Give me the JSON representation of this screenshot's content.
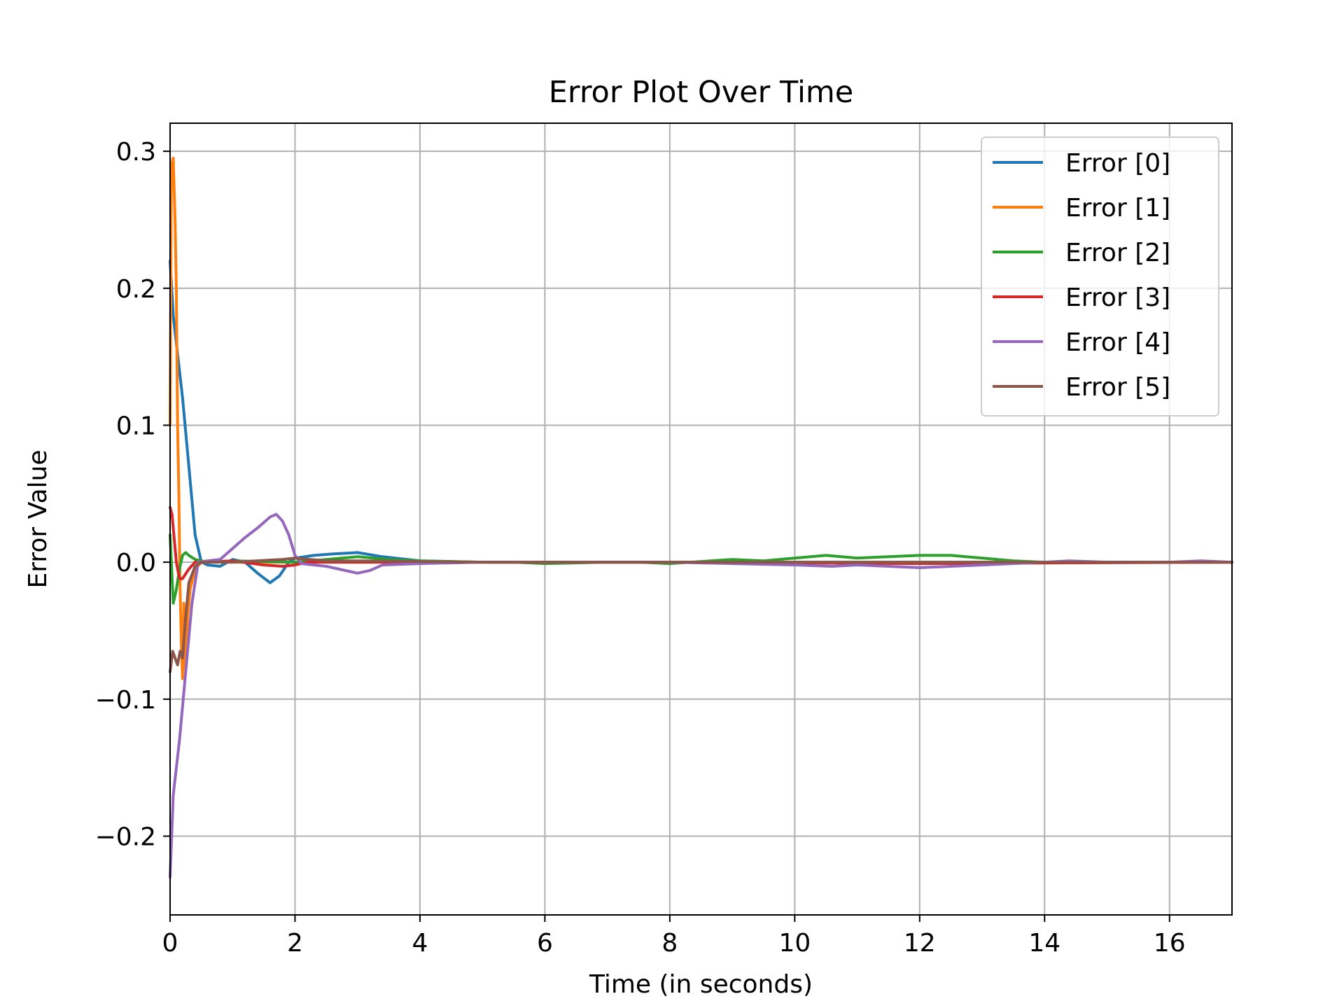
{
  "chart_data": {
    "type": "line",
    "title": "Error Plot Over Time",
    "xlabel": "Time (in seconds)",
    "ylabel": "Error Value",
    "xlim": [
      0,
      17
    ],
    "ylim": [
      -0.2575,
      0.3205
    ],
    "x_ticks": [
      0,
      2,
      4,
      6,
      8,
      10,
      12,
      14,
      16
    ],
    "x_tick_labels": [
      "0",
      "2",
      "4",
      "6",
      "8",
      "10",
      "12",
      "14",
      "16"
    ],
    "y_ticks": [
      -0.2,
      -0.1,
      0.0,
      0.1,
      0.2,
      0.3
    ],
    "y_tick_labels": [
      "−0.2",
      "−0.1",
      "0.0",
      "0.1",
      "0.2",
      "0.3"
    ],
    "grid": true,
    "legend_position": "top-right",
    "series": [
      {
        "name": "Error [0]",
        "color": "#1f77b4",
        "points": [
          [
            0,
            0.22
          ],
          [
            0.05,
            0.18
          ],
          [
            0.1,
            0.16
          ],
          [
            0.2,
            0.12
          ],
          [
            0.3,
            0.07
          ],
          [
            0.4,
            0.02
          ],
          [
            0.5,
            0.0
          ],
          [
            0.6,
            -0.002
          ],
          [
            0.8,
            -0.003
          ],
          [
            1.0,
            0.002
          ],
          [
            1.2,
            0.0
          ],
          [
            1.4,
            -0.008
          ],
          [
            1.6,
            -0.015
          ],
          [
            1.75,
            -0.01
          ],
          [
            1.9,
            0.0
          ],
          [
            2.0,
            0.003
          ],
          [
            2.3,
            0.005
          ],
          [
            2.6,
            0.006
          ],
          [
            3.0,
            0.007
          ],
          [
            3.4,
            0.004
          ],
          [
            4.0,
            0.001
          ],
          [
            5.0,
            0.0
          ],
          [
            8.0,
            0.0
          ],
          [
            12.0,
            0.0
          ],
          [
            17.0,
            0.0
          ]
        ]
      },
      {
        "name": "Error [1]",
        "color": "#ff7f0e",
        "points": [
          [
            0,
            0.1
          ],
          [
            0.02,
            0.29
          ],
          [
            0.05,
            0.295
          ],
          [
            0.08,
            0.25
          ],
          [
            0.1,
            0.2
          ],
          [
            0.12,
            0.1
          ],
          [
            0.14,
            0.05
          ],
          [
            0.16,
            -0.02
          ],
          [
            0.18,
            -0.06
          ],
          [
            0.2,
            -0.085
          ],
          [
            0.22,
            -0.03
          ],
          [
            0.25,
            -0.08
          ],
          [
            0.28,
            -0.04
          ],
          [
            0.32,
            -0.02
          ],
          [
            0.4,
            -0.005
          ],
          [
            0.5,
            0.0
          ],
          [
            1.0,
            0.0
          ],
          [
            3.0,
            0.0
          ],
          [
            8.0,
            0.0
          ],
          [
            17.0,
            0.0
          ]
        ]
      },
      {
        "name": "Error [2]",
        "color": "#2ca02c",
        "points": [
          [
            0,
            0.02
          ],
          [
            0.05,
            -0.03
          ],
          [
            0.1,
            -0.02
          ],
          [
            0.15,
            -0.005
          ],
          [
            0.2,
            0.005
          ],
          [
            0.25,
            0.007
          ],
          [
            0.3,
            0.005
          ],
          [
            0.4,
            0.002
          ],
          [
            0.6,
            0.0
          ],
          [
            1.0,
            0.001
          ],
          [
            2.0,
            0.0
          ],
          [
            2.5,
            0.002
          ],
          [
            3.0,
            0.004
          ],
          [
            3.5,
            0.002
          ],
          [
            4.0,
            0.001
          ],
          [
            5.0,
            0.0
          ],
          [
            5.5,
            0.0
          ],
          [
            6.0,
            -0.001
          ],
          [
            7.0,
            0.0
          ],
          [
            7.5,
            0.0
          ],
          [
            8.0,
            -0.001
          ],
          [
            9.0,
            0.002
          ],
          [
            9.5,
            0.001
          ],
          [
            10.0,
            0.003
          ],
          [
            10.5,
            0.005
          ],
          [
            11.0,
            0.003
          ],
          [
            11.5,
            0.004
          ],
          [
            12.0,
            0.005
          ],
          [
            12.5,
            0.005
          ],
          [
            13.0,
            0.003
          ],
          [
            13.5,
            0.001
          ],
          [
            14.0,
            0.0
          ],
          [
            17.0,
            0.0
          ]
        ]
      },
      {
        "name": "Error [3]",
        "color": "#d62728",
        "points": [
          [
            0,
            0.04
          ],
          [
            0.03,
            0.035
          ],
          [
            0.06,
            0.02
          ],
          [
            0.1,
            0.0
          ],
          [
            0.15,
            -0.012
          ],
          [
            0.2,
            -0.012
          ],
          [
            0.3,
            -0.005
          ],
          [
            0.4,
            0.0
          ],
          [
            0.5,
            0.0
          ],
          [
            1.0,
            0.001
          ],
          [
            1.5,
            -0.002
          ],
          [
            1.8,
            -0.003
          ],
          [
            2.0,
            -0.002
          ],
          [
            2.2,
            0.0
          ],
          [
            3.0,
            0.0
          ],
          [
            8.0,
            0.0
          ],
          [
            12.0,
            -0.001
          ],
          [
            17.0,
            0.0
          ]
        ]
      },
      {
        "name": "Error [4]",
        "color": "#9467bd",
        "points": [
          [
            0,
            -0.23
          ],
          [
            0.05,
            -0.17
          ],
          [
            0.15,
            -0.13
          ],
          [
            0.25,
            -0.08
          ],
          [
            0.35,
            -0.03
          ],
          [
            0.45,
            0.0
          ],
          [
            0.6,
            0.001
          ],
          [
            0.8,
            0.002
          ],
          [
            1.0,
            0.01
          ],
          [
            1.2,
            0.018
          ],
          [
            1.4,
            0.025
          ],
          [
            1.6,
            0.033
          ],
          [
            1.7,
            0.035
          ],
          [
            1.8,
            0.03
          ],
          [
            1.9,
            0.02
          ],
          [
            2.0,
            0.005
          ],
          [
            2.1,
            -0.001
          ],
          [
            2.5,
            -0.003
          ],
          [
            3.0,
            -0.008
          ],
          [
            3.2,
            -0.006
          ],
          [
            3.4,
            -0.002
          ],
          [
            4.0,
            -0.001
          ],
          [
            5.0,
            0.0
          ],
          [
            8.0,
            0.0
          ],
          [
            9.0,
            -0.001
          ],
          [
            10.0,
            -0.002
          ],
          [
            10.6,
            -0.003
          ],
          [
            11.0,
            -0.002
          ],
          [
            11.5,
            -0.003
          ],
          [
            12.0,
            -0.004
          ],
          [
            12.5,
            -0.003
          ],
          [
            13.0,
            -0.002
          ],
          [
            14.0,
            0.0
          ],
          [
            14.4,
            0.001
          ],
          [
            15.0,
            0.0
          ],
          [
            16.0,
            0.0
          ],
          [
            16.5,
            0.001
          ],
          [
            17.0,
            0.0
          ]
        ]
      },
      {
        "name": "Error [5]",
        "color": "#8c564b",
        "points": [
          [
            0,
            -0.08
          ],
          [
            0.04,
            -0.065
          ],
          [
            0.08,
            -0.07
          ],
          [
            0.12,
            -0.075
          ],
          [
            0.16,
            -0.065
          ],
          [
            0.2,
            -0.07
          ],
          [
            0.25,
            -0.04
          ],
          [
            0.3,
            -0.015
          ],
          [
            0.4,
            -0.003
          ],
          [
            0.5,
            0.0
          ],
          [
            1.0,
            0.0
          ],
          [
            1.8,
            0.002
          ],
          [
            2.0,
            0.003
          ],
          [
            2.5,
            0.001
          ],
          [
            3.0,
            0.001
          ],
          [
            5.0,
            0.0
          ],
          [
            8.0,
            0.0
          ],
          [
            12.0,
            0.0
          ],
          [
            17.0,
            0.0
          ]
        ]
      }
    ]
  }
}
